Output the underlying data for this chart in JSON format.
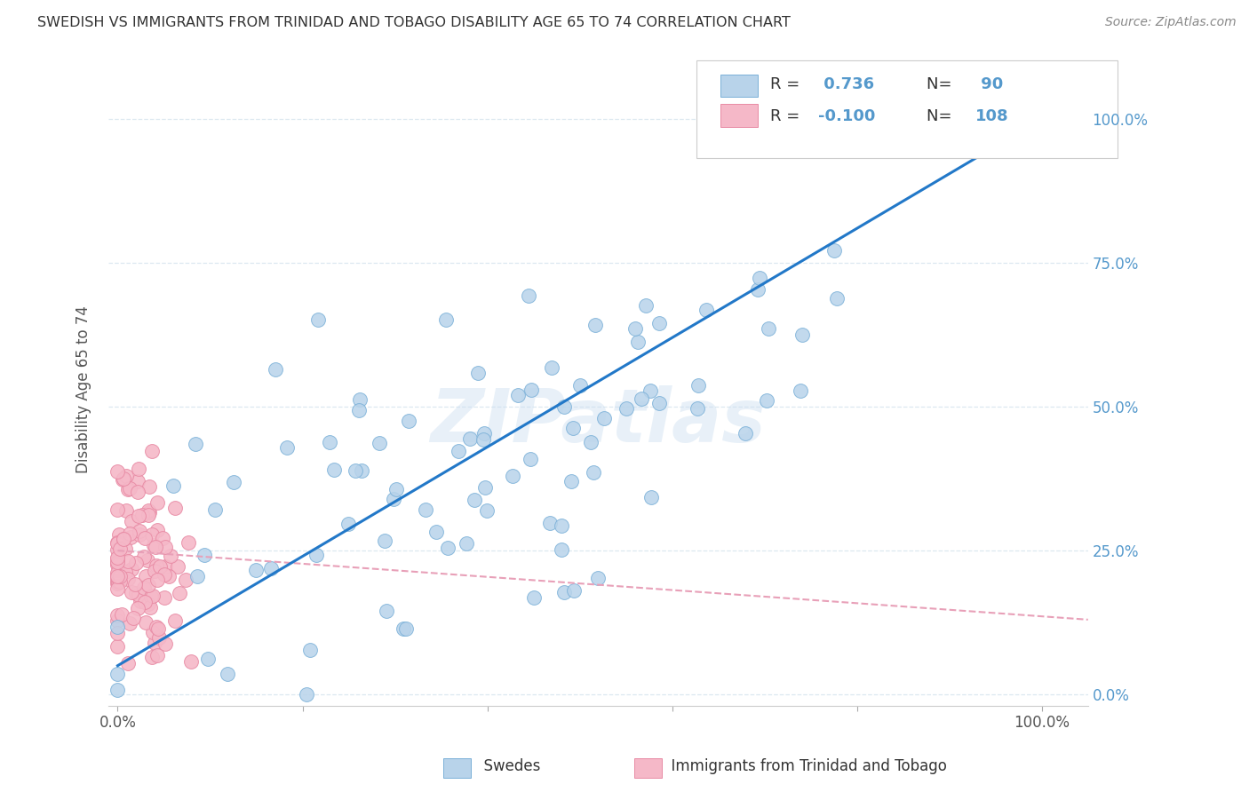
{
  "title": "SWEDISH VS IMMIGRANTS FROM TRINIDAD AND TOBAGO DISABILITY AGE 65 TO 74 CORRELATION CHART",
  "source": "Source: ZipAtlas.com",
  "ylabel": "Disability Age 65 to 74",
  "legend_labels": [
    "Swedes",
    "Immigrants from Trinidad and Tobago"
  ],
  "blue_R": 0.736,
  "blue_N": 90,
  "pink_R": -0.1,
  "pink_N": 108,
  "blue_color": "#b8d3ea",
  "blue_edge": "#7ab0d8",
  "pink_color": "#f5b8c8",
  "pink_edge": "#e88aa4",
  "line_blue": "#2278c8",
  "line_pink": "#e8a0b8",
  "watermark": "ZIPatlas",
  "bg_color": "#ffffff",
  "grid_color": "#dce8f0",
  "ytick_color": "#5599cc",
  "title_color": "#333333",
  "blue_line_x0": 0.0,
  "blue_line_y0": 0.05,
  "blue_line_x1": 1.0,
  "blue_line_y1": 1.0,
  "pink_line_x0": 0.0,
  "pink_line_y0": 0.25,
  "pink_line_x1": 1.05,
  "pink_line_y1": 0.13,
  "xlim_min": -0.01,
  "xlim_max": 1.05,
  "ylim_min": -0.02,
  "ylim_max": 1.08
}
